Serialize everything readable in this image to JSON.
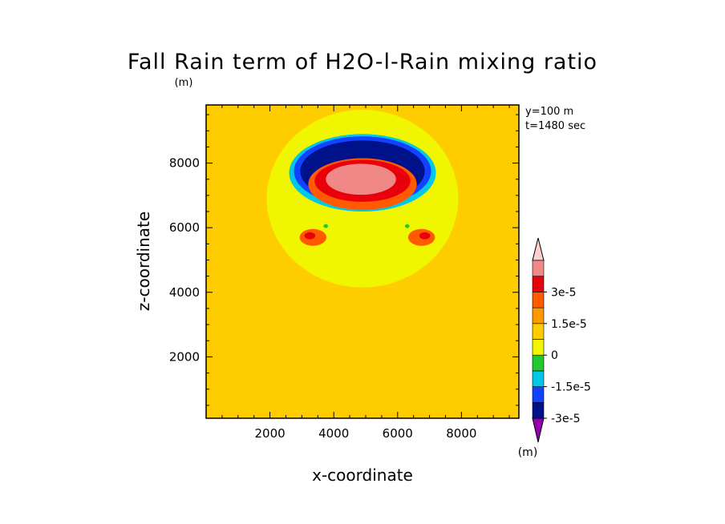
{
  "chart_data": {
    "type": "contour",
    "title": "Fall Rain term of H2O-l-Rain mixing ratio",
    "xlabel": "x-coordinate",
    "ylabel": "z-coordinate",
    "y_unit": "(m)",
    "annotations": [
      "y=100 m",
      "t=1480 sec"
    ],
    "xlim": [
      0,
      9800
    ],
    "ylim": [
      100,
      9800
    ],
    "xticks": [
      2000,
      4000,
      6000,
      8000
    ],
    "xtick_labels": [
      "2000",
      "4000",
      "6000",
      "8000"
    ],
    "yticks": [
      2000,
      4000,
      6000,
      8000
    ],
    "ytick_labels": [
      "2000",
      "4000",
      "6000",
      "8000"
    ],
    "colorbar": {
      "levels": [
        -3.75e-05,
        -3e-05,
        -2.25e-05,
        -1.5e-05,
        -7.5e-06,
        0,
        7.5e-06,
        1.5e-05,
        2.25e-05,
        3e-05,
        3.75e-05
      ],
      "colors": [
        "#9400b0",
        "#00128a",
        "#1042ff",
        "#00c8e6",
        "#22c832",
        "#f0f500",
        "#ffcc00",
        "#ff9900",
        "#ff5a00",
        "#e8000a",
        "#f08888",
        "#ffd0d0"
      ],
      "labels": [
        "-3e-5",
        "-1.5e-5",
        "0",
        "1.5e-5",
        "3e-5"
      ],
      "label_values": [
        -3e-05,
        -1.5e-05,
        0,
        1.5e-05,
        3e-05
      ],
      "unit": "(m)"
    },
    "background_level_color": "#ffcc00",
    "regions": [
      {
        "name": "positive-halo",
        "color": "#f0f500",
        "cx": 4900,
        "cz": 6900,
        "rx": 3000,
        "rz": 2750
      },
      {
        "name": "outer-arc-light-blue",
        "color": "#00c8e6",
        "cx": 4900,
        "cz": 7700,
        "rx": 2300,
        "rz": 1200
      },
      {
        "name": "outer-arc-blue",
        "color": "#1042ff",
        "cx": 4900,
        "cz": 7750,
        "rx": 2150,
        "rz": 1080
      },
      {
        "name": "outer-arc-dark-blue",
        "color": "#00128a",
        "cx": 4900,
        "cz": 7750,
        "rx": 1950,
        "rz": 950
      },
      {
        "name": "inner-arc-orange",
        "color": "#ff5a00",
        "cx": 4900,
        "cz": 7350,
        "rx": 1700,
        "rz": 800
      },
      {
        "name": "inner-arc-red",
        "color": "#e8000a",
        "cx": 4900,
        "cz": 7450,
        "rx": 1500,
        "rz": 650
      },
      {
        "name": "inner-arc-pink",
        "color": "#f08888",
        "cx": 4850,
        "cz": 7500,
        "rx": 1100,
        "rz": 480
      },
      {
        "name": "left-lobe-orange",
        "color": "#ff5a00",
        "cx": 3350,
        "cz": 5700,
        "rx": 420,
        "rz": 260
      },
      {
        "name": "right-lobe-orange",
        "color": "#ff5a00",
        "cx": 6750,
        "cz": 5700,
        "rx": 420,
        "rz": 260
      },
      {
        "name": "left-lobe-red",
        "color": "#e8000a",
        "cx": 3250,
        "cz": 5750,
        "rx": 170,
        "rz": 110
      },
      {
        "name": "right-lobe-red",
        "color": "#e8000a",
        "cx": 6850,
        "cz": 5750,
        "rx": 170,
        "rz": 110
      },
      {
        "name": "left-green-dot",
        "color": "#22c832",
        "cx": 3750,
        "cz": 6050,
        "rx": 70,
        "rz": 60
      },
      {
        "name": "right-green-dot",
        "color": "#22c832",
        "cx": 6300,
        "cz": 6050,
        "rx": 70,
        "rz": 60
      }
    ]
  }
}
